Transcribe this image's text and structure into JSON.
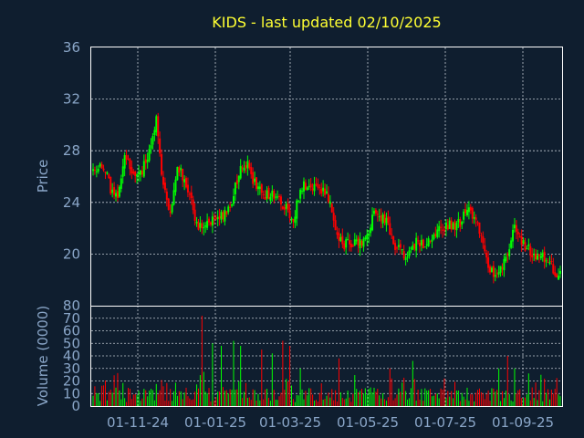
{
  "chart_data": {
    "type": "candlestick",
    "title": "KIDS - last updated 02/10/2025",
    "price_panel": {
      "ylabel": "Price",
      "ylim": [
        16,
        36
      ],
      "yticks": [
        36,
        32,
        28,
        24,
        20
      ]
    },
    "volume_panel": {
      "ylabel": "Volume (0000)",
      "ylim": [
        0,
        80
      ],
      "yticks": [
        80,
        70,
        60,
        50,
        40,
        30,
        20,
        10,
        0
      ]
    },
    "x_tick_labels": [
      "01-11-24",
      "01-01-25",
      "01-03-25",
      "01-05-25",
      "01-07-25",
      "01-09-25"
    ],
    "grid": true,
    "colors": {
      "up": "#00ff00",
      "down": "#ff0000",
      "background": "#0f1e2f",
      "title": "#ffff33",
      "axis_text": "#8aa6c8"
    },
    "price_anchors": [
      [
        0,
        26.5
      ],
      [
        6,
        26.8
      ],
      [
        10,
        25.0
      ],
      [
        14,
        24.4
      ],
      [
        18,
        27.5
      ],
      [
        25,
        26.0
      ],
      [
        30,
        27.0
      ],
      [
        34,
        29.5
      ],
      [
        36,
        30.5
      ],
      [
        40,
        25.0
      ],
      [
        44,
        23.3
      ],
      [
        48,
        26.5
      ],
      [
        52,
        26.0
      ],
      [
        56,
        24.0
      ],
      [
        60,
        22.0
      ],
      [
        66,
        22.5
      ],
      [
        72,
        22.7
      ],
      [
        78,
        23.5
      ],
      [
        84,
        26.8
      ],
      [
        88,
        27.0
      ],
      [
        92,
        25.5
      ],
      [
        98,
        24.5
      ],
      [
        104,
        24.5
      ],
      [
        110,
        23.5
      ],
      [
        114,
        22.5
      ],
      [
        118,
        25.2
      ],
      [
        124,
        25.3
      ],
      [
        130,
        25.0
      ],
      [
        134,
        24.2
      ],
      [
        138,
        22.0
      ],
      [
        142,
        20.8
      ],
      [
        148,
        20.8
      ],
      [
        154,
        21.0
      ],
      [
        160,
        23.0
      ],
      [
        166,
        22.8
      ],
      [
        172,
        20.5
      ],
      [
        178,
        19.8
      ],
      [
        184,
        21.0
      ],
      [
        190,
        20.8
      ],
      [
        196,
        22.0
      ],
      [
        202,
        22.2
      ],
      [
        208,
        22.3
      ],
      [
        214,
        23.5
      ],
      [
        220,
        22.0
      ],
      [
        226,
        18.5
      ],
      [
        230,
        18.8
      ],
      [
        236,
        19.8
      ],
      [
        240,
        22.3
      ],
      [
        246,
        20.5
      ],
      [
        252,
        20.0
      ],
      [
        258,
        19.5
      ],
      [
        264,
        18.6
      ],
      [
        266,
        18.3
      ]
    ],
    "volume_spikes": [
      [
        62,
        72
      ],
      [
        68,
        50
      ],
      [
        73,
        48
      ],
      [
        80,
        52
      ],
      [
        84,
        48
      ],
      [
        96,
        45
      ],
      [
        102,
        42
      ],
      [
        108,
        52
      ],
      [
        112,
        48
      ],
      [
        118,
        30
      ],
      [
        140,
        38
      ],
      [
        170,
        22
      ],
      [
        182,
        36
      ],
      [
        200,
        22
      ],
      [
        236,
        40
      ],
      [
        240,
        30
      ],
      [
        248,
        26
      ]
    ]
  }
}
